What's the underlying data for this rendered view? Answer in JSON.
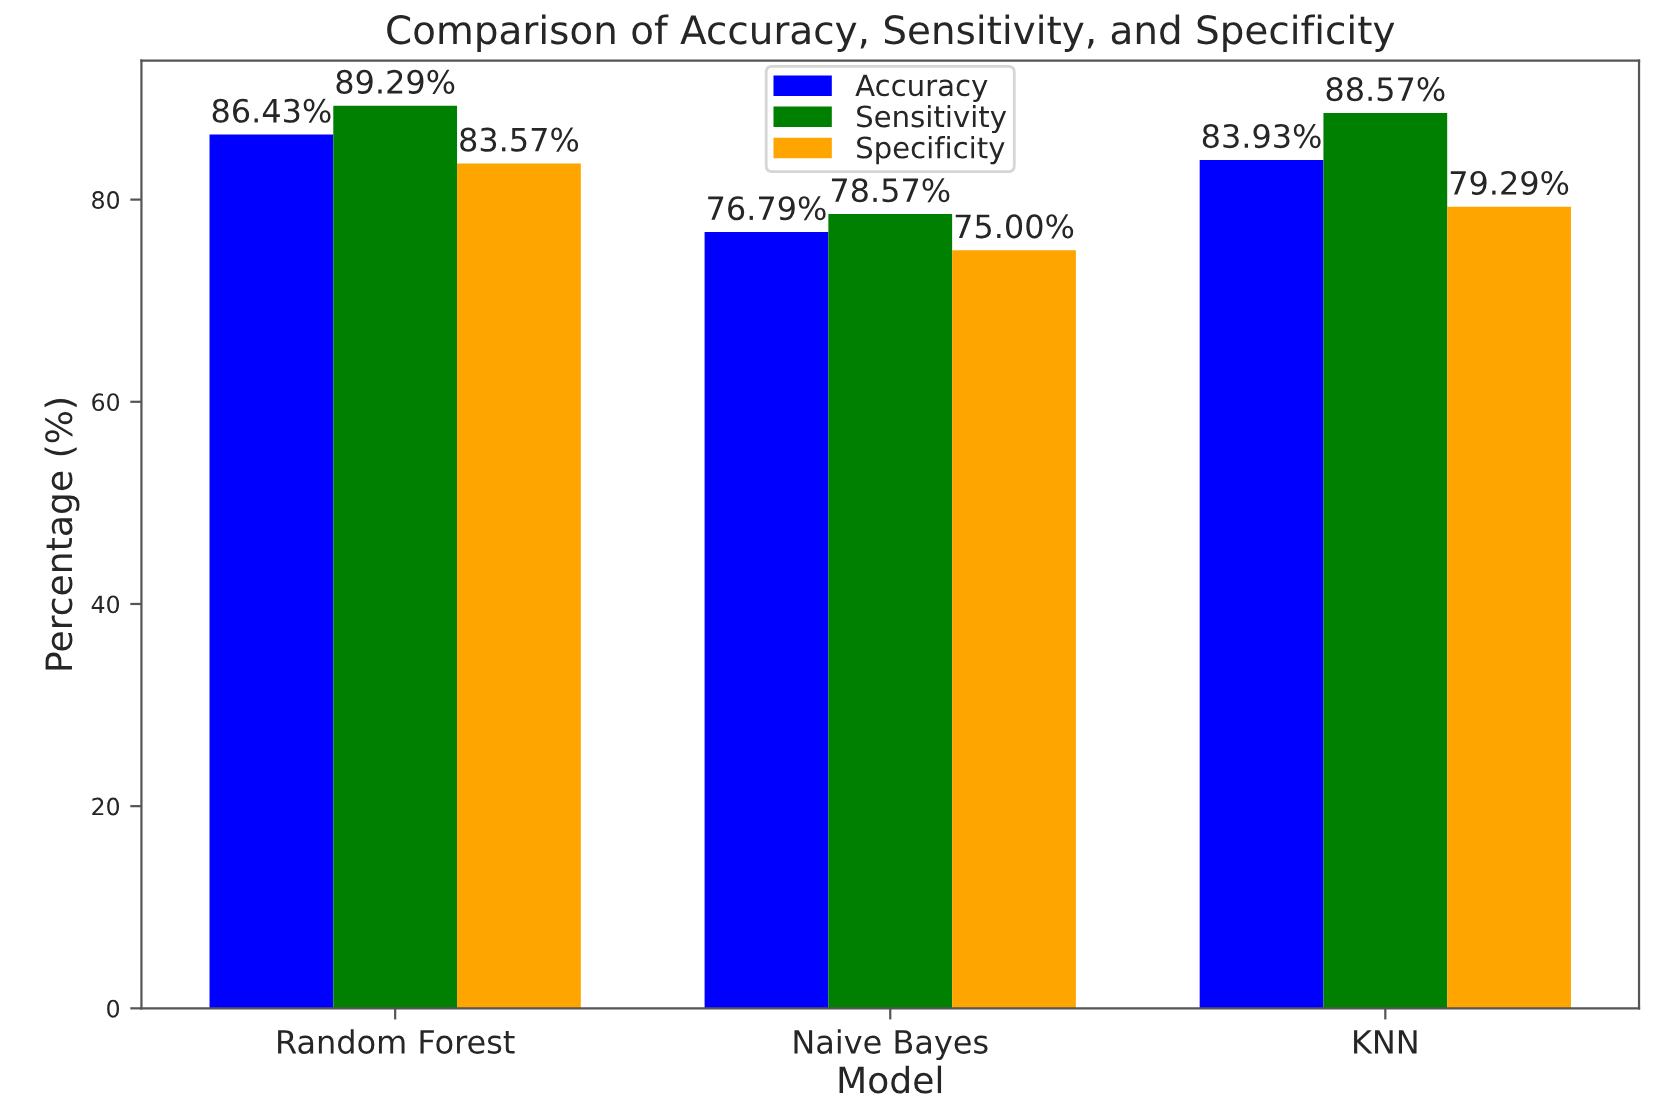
{
  "chart_data": {
    "type": "bar",
    "title": "Comparison of Accuracy, Sensitivity, and Specificity",
    "xlabel": "Model",
    "ylabel": "Percentage (%)",
    "categories": [
      "Random Forest",
      "Naive Bayes",
      "KNN"
    ],
    "series": [
      {
        "name": "Accuracy",
        "color": "#0000ff",
        "values": [
          86.43,
          76.79,
          83.93
        ],
        "value_labels": [
          "86.43%",
          "76.79%",
          "83.93%"
        ]
      },
      {
        "name": "Sensitivity",
        "color": "#008000",
        "values": [
          89.29,
          78.57,
          88.57
        ],
        "value_labels": [
          "89.29%",
          "78.57%",
          "88.57%"
        ]
      },
      {
        "name": "Specificity",
        "color": "#ffa500",
        "values": [
          83.57,
          75.0,
          79.29
        ],
        "value_labels": [
          "83.57%",
          "75.00%",
          "79.29%"
        ]
      }
    ],
    "ylim": [
      0,
      93.75
    ],
    "yticks": [
      0,
      20,
      40,
      60,
      80
    ],
    "grid": false,
    "legend": "top"
  }
}
